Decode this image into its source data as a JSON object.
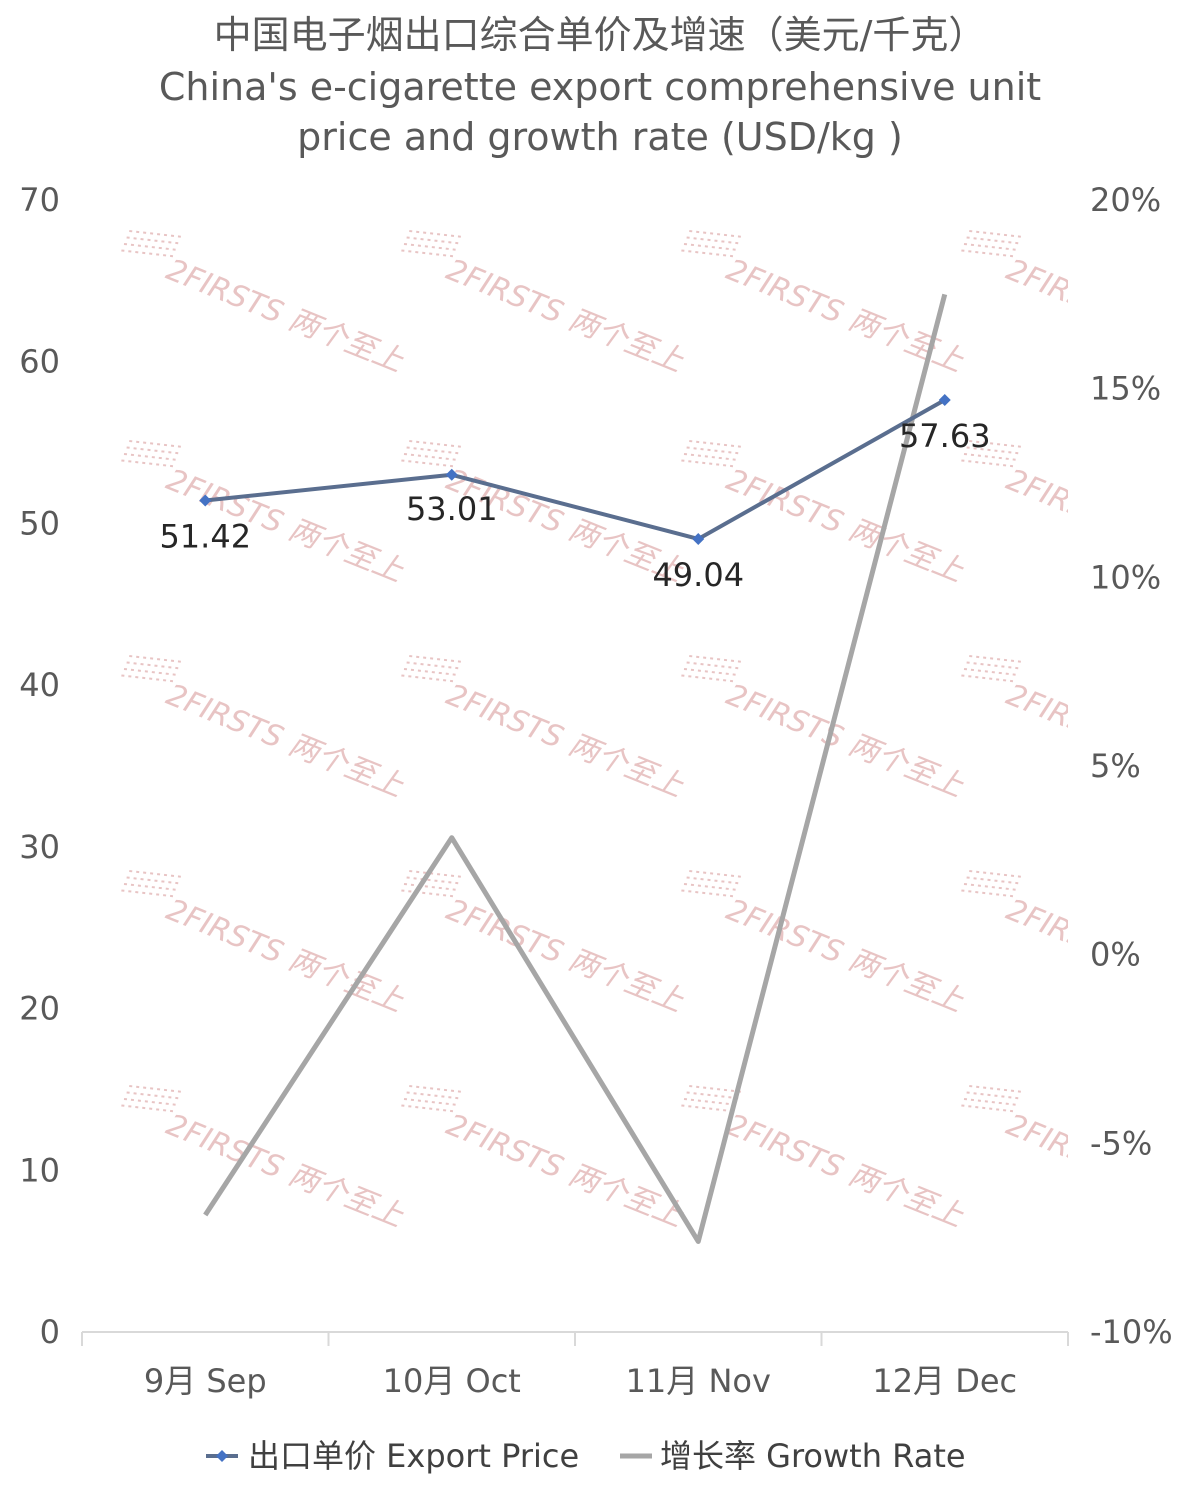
{
  "chart_data": {
    "type": "line",
    "title_lines": [
      "中国电子烟出口综合单价及增速（美元/千克）",
      "China's e-cigarette export comprehensive unit",
      "price and growth rate (USD/kg )"
    ],
    "categories": [
      "9月 Sep",
      "10月 Oct",
      "11月 Nov",
      "12月 Dec"
    ],
    "series": [
      {
        "name": "出口单价 Export Price",
        "axis": "left",
        "color": "#5a6e8f",
        "marker_color": "#4472c4",
        "values": [
          51.42,
          53.01,
          49.04,
          57.63
        ],
        "data_labels": [
          "51.42",
          "53.01",
          "49.04",
          "57.63"
        ]
      },
      {
        "name": "增长率 Growth Rate",
        "axis": "right",
        "color": "#a6a6a6",
        "values": [
          -6.9,
          3.1,
          -7.6,
          17.5
        ]
      }
    ],
    "left_axis": {
      "range": [
        0,
        70
      ],
      "ticks": [
        "0",
        "10",
        "20",
        "30",
        "40",
        "50",
        "60",
        "70"
      ]
    },
    "right_axis": {
      "range": [
        -10,
        20
      ],
      "ticks": [
        "-10%",
        "-5%",
        "0%",
        "5%",
        "10%",
        "15%",
        "20%"
      ]
    },
    "grid": false,
    "legend_position": "bottom"
  },
  "watermark": {
    "text": "2FIRSTS 两个至上",
    "color": "#e8c4c4"
  }
}
